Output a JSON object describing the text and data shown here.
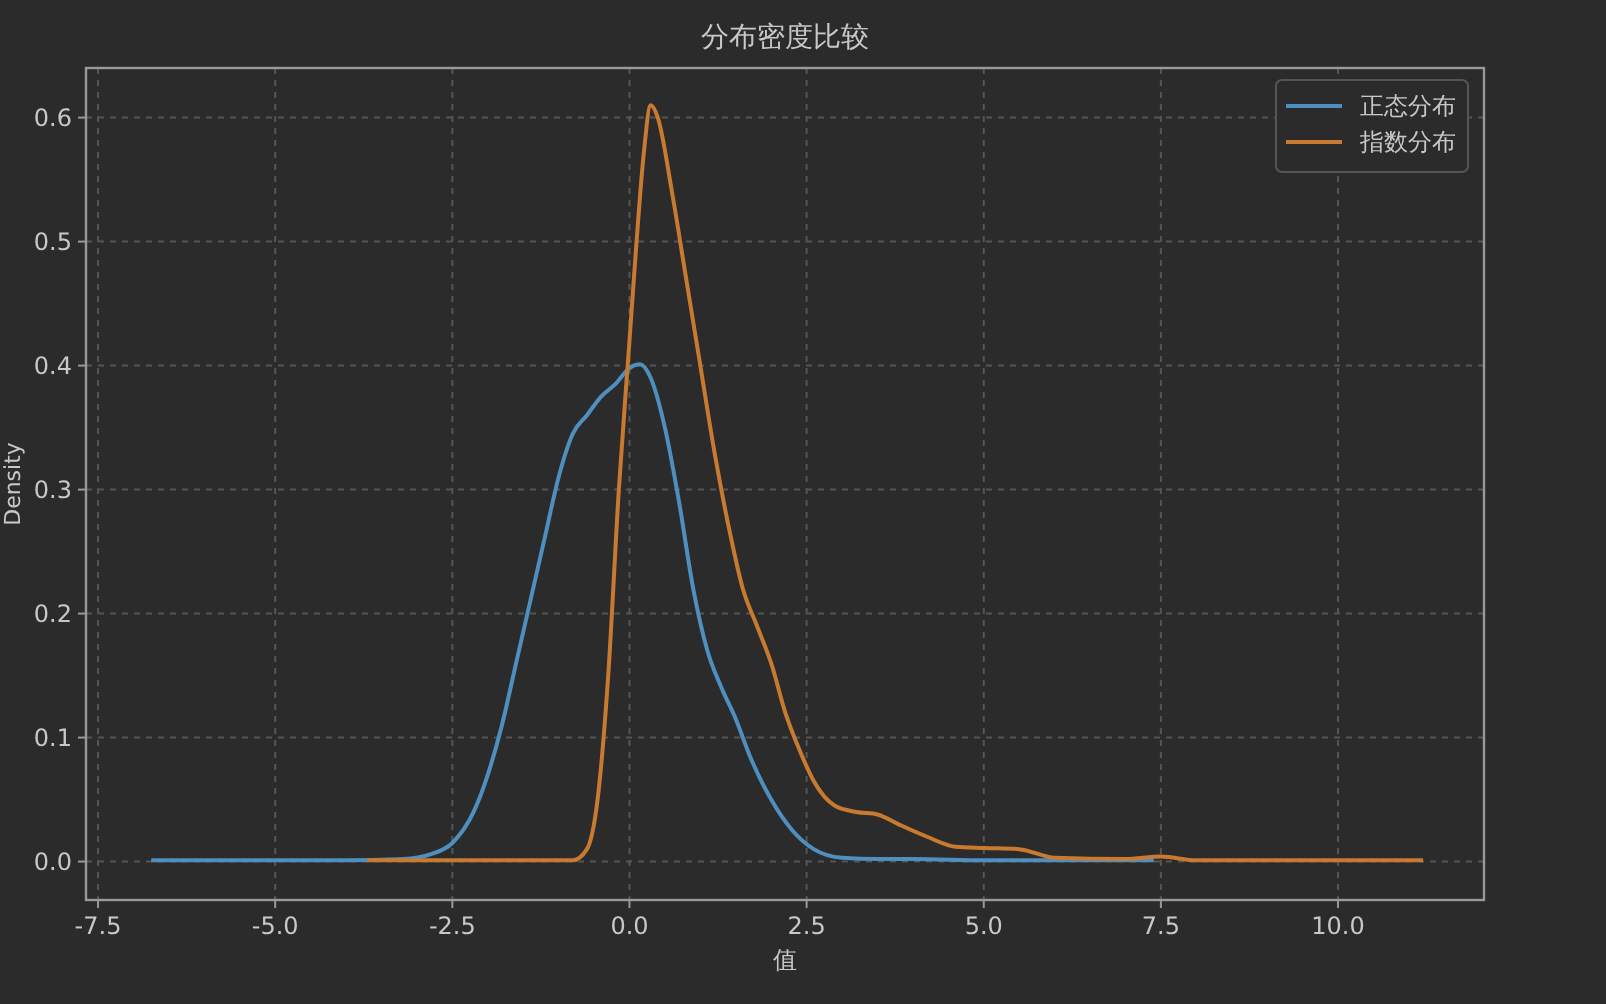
{
  "chart_data": {
    "type": "line",
    "title": "分布密度比较",
    "xlabel": "值",
    "ylabel": "Density",
    "xlim": [
      -7.67,
      12.06
    ],
    "ylim": [
      -0.031,
      0.64
    ],
    "xticks": [
      {
        "value": -7.5,
        "label": "-7.5"
      },
      {
        "value": -5,
        "label": "-5.0"
      },
      {
        "value": -2.5,
        "label": "-2.5"
      },
      {
        "value": 0,
        "label": "0.0"
      },
      {
        "value": 2.5,
        "label": "2.5"
      },
      {
        "value": 5,
        "label": "5.0"
      },
      {
        "value": 7.5,
        "label": "7.5"
      },
      {
        "value": 10,
        "label": "10.0"
      }
    ],
    "yticks": [
      {
        "value": 0,
        "label": "0.0"
      },
      0.1,
      0.2,
      0.3,
      0.4,
      0.5,
      0.6
    ],
    "grid": true,
    "legend": "top right",
    "line_style": "solid",
    "marker": "none",
    "series": [
      {
        "name": "正态分布",
        "color": "#4e8fbf",
        "x": [
          -6.75,
          -4,
          -3.2,
          -2.8,
          -2.5,
          -2.2,
          -2,
          -1.8,
          -1.6,
          -1.4,
          -1.2,
          -1,
          -0.8,
          -0.6,
          -0.4,
          -0.2,
          0,
          0.15,
          0.3,
          0.5,
          0.7,
          0.9,
          1.1,
          1.3,
          1.5,
          1.7,
          2,
          2.3,
          2.6,
          3,
          3.5,
          4,
          5,
          7.4
        ],
        "values": [
          0.001,
          0.001,
          0.002,
          0.006,
          0.015,
          0.04,
          0.07,
          0.11,
          0.16,
          0.21,
          0.26,
          0.31,
          0.345,
          0.36,
          0.375,
          0.385,
          0.398,
          0.401,
          0.39,
          0.35,
          0.29,
          0.22,
          0.17,
          0.14,
          0.115,
          0.085,
          0.05,
          0.025,
          0.01,
          0.003,
          0.002,
          0.002,
          0.001,
          0.001
        ]
      },
      {
        "name": "指数分布",
        "color": "#c77a30",
        "x": [
          -3.7,
          -0.8,
          -0.6,
          -0.45,
          -0.3,
          -0.15,
          0,
          0.1,
          0.2,
          0.3,
          0.4,
          0.6,
          0.8,
          1,
          1.2,
          1.4,
          1.6,
          1.8,
          2,
          2.2,
          2.4,
          2.6,
          2.9,
          3.2,
          3.5,
          3.8,
          4.2,
          4.6,
          5,
          5.5,
          6,
          7,
          7.5,
          8,
          11.2
        ],
        "values": [
          0.001,
          0.001,
          0.01,
          0.05,
          0.15,
          0.3,
          0.42,
          0.5,
          0.57,
          0.61,
          0.6,
          0.54,
          0.47,
          0.4,
          0.33,
          0.27,
          0.22,
          0.19,
          0.16,
          0.12,
          0.09,
          0.065,
          0.045,
          0.04,
          0.038,
          0.03,
          0.02,
          0.012,
          0.011,
          0.01,
          0.003,
          0.002,
          0.004,
          0.001,
          0.001
        ]
      }
    ]
  }
}
